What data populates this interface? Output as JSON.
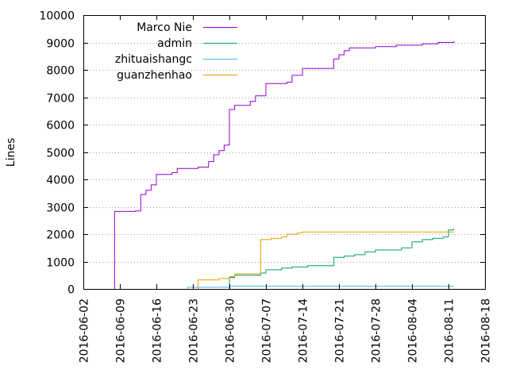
{
  "chart_data": {
    "type": "line",
    "title": "",
    "xlabel": "",
    "ylabel": "Lines",
    "x_axis": {
      "type": "date",
      "range": [
        "2016-06-02",
        "2016-08-18"
      ],
      "ticks": [
        "2016-06-02",
        "2016-06-09",
        "2016-06-16",
        "2016-06-23",
        "2016-06-30",
        "2016-07-07",
        "2016-07-14",
        "2016-07-21",
        "2016-07-28",
        "2016-08-04",
        "2016-08-11",
        "2016-08-18"
      ],
      "tick_labels_rotated": true
    },
    "y_axis": {
      "range": [
        0,
        10000
      ],
      "ticks": [
        0,
        1000,
        2000,
        3000,
        4000,
        5000,
        6000,
        7000,
        8000,
        9000,
        10000
      ]
    },
    "grid": "dotted",
    "legend": "top-left",
    "series": [
      {
        "name": "Marco Nie",
        "color": "#9400d3",
        "step": true,
        "points": [
          [
            "2016-06-08",
            0
          ],
          [
            "2016-06-08",
            2830
          ],
          [
            "2016-06-12",
            2850
          ],
          [
            "2016-06-13",
            3450
          ],
          [
            "2016-06-14",
            3600
          ],
          [
            "2016-06-15",
            3800
          ],
          [
            "2016-06-16",
            3950
          ],
          [
            "2016-06-16",
            4180
          ],
          [
            "2016-06-19",
            4250
          ],
          [
            "2016-06-20",
            4400
          ],
          [
            "2016-06-24",
            4450
          ],
          [
            "2016-06-26",
            4650
          ],
          [
            "2016-06-27",
            4900
          ],
          [
            "2016-06-28",
            5050
          ],
          [
            "2016-06-29",
            5250
          ],
          [
            "2016-06-30",
            5550
          ],
          [
            "2016-06-30",
            6550
          ],
          [
            "2016-07-01",
            6700
          ],
          [
            "2016-07-04",
            6850
          ],
          [
            "2016-07-05",
            7050
          ],
          [
            "2016-07-07",
            7500
          ],
          [
            "2016-07-11",
            7550
          ],
          [
            "2016-07-12",
            7800
          ],
          [
            "2016-07-14",
            8050
          ],
          [
            "2016-07-20",
            8400
          ],
          [
            "2016-07-21",
            8550
          ],
          [
            "2016-07-22",
            8700
          ],
          [
            "2016-07-23",
            8800
          ],
          [
            "2016-07-28",
            8850
          ],
          [
            "2016-08-01",
            8900
          ],
          [
            "2016-08-06",
            8950
          ],
          [
            "2016-08-09",
            9000
          ],
          [
            "2016-08-12",
            9050
          ]
        ]
      },
      {
        "name": "admin",
        "color": "#009e73",
        "step": true,
        "points": [
          [
            "2016-06-30",
            0
          ],
          [
            "2016-06-30",
            420
          ],
          [
            "2016-07-01",
            500
          ],
          [
            "2016-07-06",
            580
          ],
          [
            "2016-07-07",
            700
          ],
          [
            "2016-07-10",
            760
          ],
          [
            "2016-07-12",
            800
          ],
          [
            "2016-07-15",
            850
          ],
          [
            "2016-07-20",
            1150
          ],
          [
            "2016-07-22",
            1200
          ],
          [
            "2016-07-24",
            1250
          ],
          [
            "2016-07-26",
            1350
          ],
          [
            "2016-07-28",
            1420
          ],
          [
            "2016-08-02",
            1500
          ],
          [
            "2016-08-04",
            1720
          ],
          [
            "2016-08-06",
            1800
          ],
          [
            "2016-08-08",
            1850
          ],
          [
            "2016-08-10",
            1900
          ],
          [
            "2016-08-11",
            2150
          ],
          [
            "2016-08-12",
            2200
          ]
        ]
      },
      {
        "name": "zhituaishangc",
        "color": "#56b4e9",
        "step": true,
        "points": [
          [
            "2016-06-22",
            0
          ],
          [
            "2016-06-22",
            60
          ],
          [
            "2016-06-30",
            100
          ],
          [
            "2016-08-12",
            110
          ]
        ]
      },
      {
        "name": "guanzhenhao",
        "color": "#e69f00",
        "step": true,
        "points": [
          [
            "2016-06-24",
            0
          ],
          [
            "2016-06-24",
            330
          ],
          [
            "2016-06-28",
            380
          ],
          [
            "2016-06-30",
            450
          ],
          [
            "2016-07-01",
            550
          ],
          [
            "2016-07-06",
            600
          ],
          [
            "2016-07-06",
            1800
          ],
          [
            "2016-07-08",
            1850
          ],
          [
            "2016-07-10",
            1900
          ],
          [
            "2016-07-11",
            2000
          ],
          [
            "2016-07-13",
            2050
          ],
          [
            "2016-07-14",
            2080
          ],
          [
            "2016-08-12",
            2100
          ]
        ]
      }
    ]
  }
}
